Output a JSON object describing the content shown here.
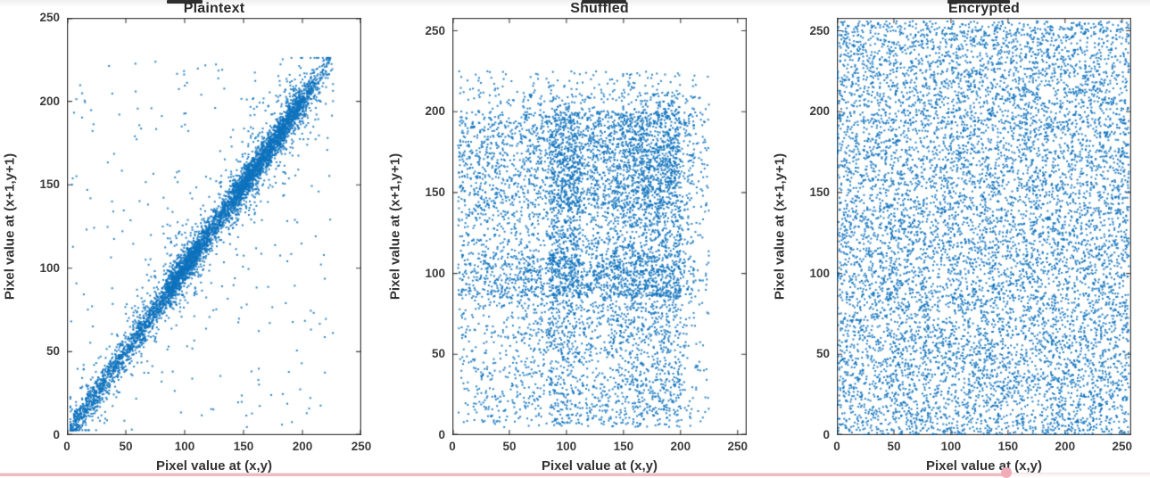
{
  "page": {
    "background": "#ffffff",
    "top_edge_artifacts": {
      "note": "bottom fragments of a cropped bold text line above each subplot title",
      "strip_color": "#2e2e2e"
    },
    "progress_bar": {
      "type": "video-progress",
      "fill_percent": 87.5,
      "track_color": "#faf4f5",
      "fill_color": "#f3bac1",
      "knob_color": "#f0adb9"
    }
  },
  "chart_data": [
    {
      "type": "scatter",
      "title": "Plaintext",
      "xlabel": "Pixel value at (x,y)",
      "ylabel": "Pixel value at (x+1,y+1)",
      "xlim": [
        0,
        250
      ],
      "ylim": [
        0,
        250
      ],
      "xticks": [
        0,
        50,
        100,
        150,
        200,
        250
      ],
      "yticks": [
        0,
        50,
        100,
        150,
        200,
        250
      ],
      "marker_color": "#0e72bd",
      "marker_size_px": 2,
      "n_points": 5600,
      "pattern": "diagonal-correlated",
      "description": "Adjacent-pixel correlation of plain image: tight dense diagonal band from (3,3) to (225,225) with a looser halo and sparse off-diagonal outliers; strong positive correlation (~0.97).",
      "value_range": [
        3,
        226
      ],
      "noise_sigma": 4.5,
      "halo_sigma": 14,
      "halo_frac": 0.15,
      "outlier_frac": 0.055,
      "marginal_bins": [
        {
          "range": [
            3,
            15
          ],
          "w": 0.55
        },
        {
          "range": [
            15,
            35
          ],
          "w": 0.65
        },
        {
          "range": [
            35,
            60
          ],
          "w": 0.6
        },
        {
          "range": [
            60,
            85
          ],
          "w": 0.75
        },
        {
          "range": [
            85,
            112
          ],
          "w": 1.7
        },
        {
          "range": [
            112,
            140
          ],
          "w": 0.9
        },
        {
          "range": [
            140,
            170
          ],
          "w": 1.5
        },
        {
          "range": [
            170,
            200
          ],
          "w": 1.45
        },
        {
          "range": [
            200,
            212
          ],
          "w": 0.55
        },
        {
          "range": [
            212,
            225
          ],
          "w": 0.22
        }
      ]
    },
    {
      "type": "scatter",
      "title": "Shuffled",
      "xlabel": "Pixel value at (x,y)",
      "ylabel": "Pixel value at (x+1,y+1)",
      "xlim": [
        0,
        258
      ],
      "ylim": [
        0,
        258
      ],
      "xticks": [
        0,
        50,
        100,
        150,
        200,
        250
      ],
      "yticks": [
        0,
        50,
        100,
        150,
        200,
        250
      ],
      "marker_color": "#0e72bd",
      "marker_size_px": 2,
      "n_points": 7200,
      "pattern": "independent-marginals",
      "description": "Pixel-shuffled image: x and y values independent draws from the same pixel-value histogram, producing a blocky grid of dense vertical/horizontal bands near values 85-112 and 140-200; values span ~5-225 (no correlation).",
      "value_range": [
        5,
        225
      ],
      "uniform_frac": 0.04,
      "marginal_bins": [
        {
          "range": [
            5,
            15
          ],
          "w": 0.55
        },
        {
          "range": [
            15,
            35
          ],
          "w": 0.65
        },
        {
          "range": [
            35,
            60
          ],
          "w": 0.6
        },
        {
          "range": [
            60,
            85
          ],
          "w": 0.75
        },
        {
          "range": [
            85,
            112
          ],
          "w": 1.7
        },
        {
          "range": [
            112,
            140
          ],
          "w": 0.9
        },
        {
          "range": [
            140,
            170
          ],
          "w": 1.5
        },
        {
          "range": [
            170,
            200
          ],
          "w": 1.45
        },
        {
          "range": [
            200,
            212
          ],
          "w": 0.55
        },
        {
          "range": [
            212,
            225
          ],
          "w": 0.22
        }
      ]
    },
    {
      "type": "scatter",
      "title": "Encrypted",
      "xlabel": "Pixel value at (x,y)",
      "ylabel": "Pixel value at (x+1,y+1)",
      "xlim": [
        0,
        258
      ],
      "ylim": [
        0,
        258
      ],
      "xticks": [
        0,
        50,
        100,
        150,
        200,
        250
      ],
      "yticks": [
        0,
        50,
        100,
        150,
        200,
        250
      ],
      "marker_color": "#0e72bd",
      "marker_size_px": 2,
      "n_points": 9200,
      "pattern": "uniform",
      "description": "Encrypted image: adjacent-pixel pairs uniformly distributed over the full 0-255 range with no visible structure (correlation ~0).",
      "value_range": [
        0,
        256
      ]
    }
  ]
}
